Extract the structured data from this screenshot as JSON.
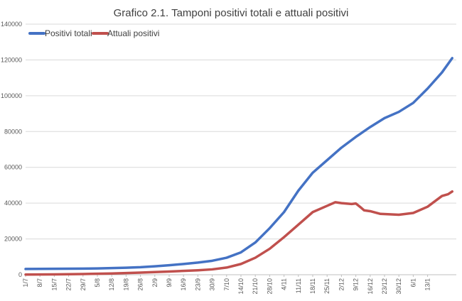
{
  "chart_data": {
    "type": "line",
    "title": "Grafico 2.1. Tamponi positivi totali e attuali positivi",
    "xlabel": "",
    "ylabel": "",
    "ylim": [
      0,
      140000
    ],
    "yticks": [
      0,
      20000,
      40000,
      60000,
      80000,
      100000,
      120000,
      140000
    ],
    "ytick_labels": [
      "0",
      "20000",
      "40000",
      "60000",
      "80000",
      "100000",
      "120000",
      "140000"
    ],
    "x_start_day": "1/7",
    "xtick_labels": [
      "1/7",
      "8/7",
      "15/7",
      "22/7",
      "29/7",
      "5/8",
      "12/8",
      "19/8",
      "26/8",
      "2/9",
      "9/9",
      "16/9",
      "23/9",
      "30/9",
      "7/10",
      "14/10",
      "21/10",
      "28/10",
      "4/11",
      "11/11",
      "18/11",
      "25/11",
      "2/12",
      "9/12",
      "16/12",
      "23/12",
      "30/12",
      "6/1",
      "13/1"
    ],
    "grid": "horizontal",
    "legend": "top-left",
    "series": [
      {
        "name": "Positivi totali",
        "color": "#4472C4",
        "points": [
          [
            0,
            3200
          ],
          [
            14,
            3300
          ],
          [
            28,
            3400
          ],
          [
            35,
            3500
          ],
          [
            42,
            3700
          ],
          [
            49,
            3900
          ],
          [
            56,
            4200
          ],
          [
            63,
            4700
          ],
          [
            70,
            5300
          ],
          [
            77,
            6000
          ],
          [
            84,
            6800
          ],
          [
            91,
            7800
          ],
          [
            98,
            9500
          ],
          [
            105,
            12500
          ],
          [
            112,
            18000
          ],
          [
            119,
            26000
          ],
          [
            126,
            35000
          ],
          [
            133,
            47000
          ],
          [
            140,
            57000
          ],
          [
            147,
            64000
          ],
          [
            154,
            71000
          ],
          [
            161,
            77000
          ],
          [
            168,
            82500
          ],
          [
            175,
            87500
          ],
          [
            182,
            91000
          ],
          [
            189,
            96000
          ],
          [
            196,
            104000
          ],
          [
            203,
            113000
          ],
          [
            208,
            121000
          ]
        ]
      },
      {
        "name": "Attuali positivi",
        "color": "#C0504D",
        "points": [
          [
            0,
            100
          ],
          [
            14,
            200
          ],
          [
            28,
            400
          ],
          [
            42,
            700
          ],
          [
            56,
            1200
          ],
          [
            70,
            1800
          ],
          [
            84,
            2500
          ],
          [
            91,
            3000
          ],
          [
            98,
            4000
          ],
          [
            105,
            6000
          ],
          [
            112,
            9500
          ],
          [
            119,
            14500
          ],
          [
            126,
            21000
          ],
          [
            133,
            28000
          ],
          [
            140,
            35000
          ],
          [
            147,
            38500
          ],
          [
            151,
            40500
          ],
          [
            154,
            40000
          ],
          [
            159,
            39500
          ],
          [
            161,
            39800
          ],
          [
            163,
            38000
          ],
          [
            165,
            36000
          ],
          [
            168,
            35500
          ],
          [
            173,
            34000
          ],
          [
            182,
            33500
          ],
          [
            189,
            34500
          ],
          [
            196,
            38000
          ],
          [
            203,
            44000
          ],
          [
            206,
            45000
          ],
          [
            208,
            46500
          ]
        ]
      }
    ]
  }
}
